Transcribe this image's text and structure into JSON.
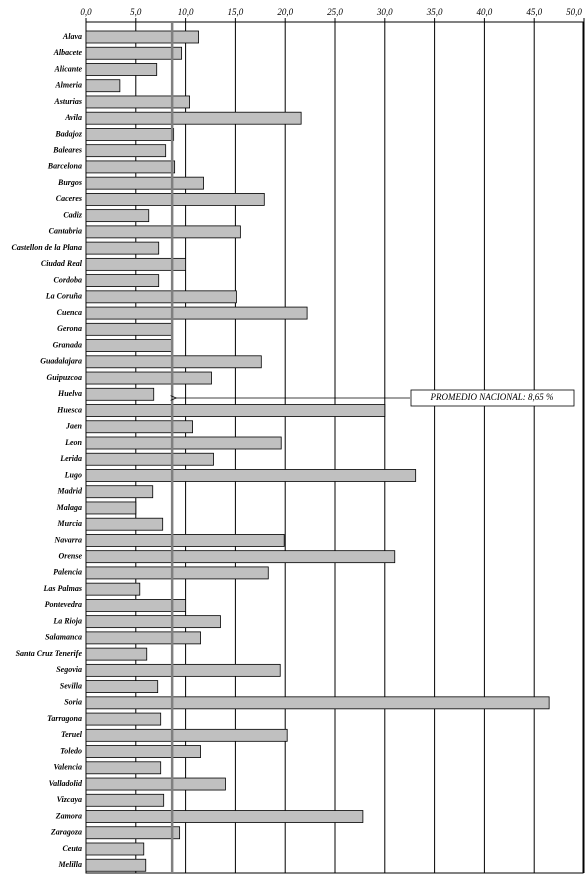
{
  "chart_data": {
    "type": "hbar",
    "categories": [
      "Alava",
      "Albacete",
      "Alicante",
      "Almeria",
      "Asturias",
      "Avila",
      "Badajoz",
      "Baleares",
      "Barcelona",
      "Burgos",
      "Caceres",
      "Cadiz",
      "Cantabria",
      "Castellon de la Plana",
      "Ciudad Real",
      "Cordoba",
      "La Coruña",
      "Cuenca",
      "Gerona",
      "Granada",
      "Guadalajara",
      "Guipuzcoa",
      "Huelva",
      "Huesca",
      "Jaen",
      "Leon",
      "Lerida",
      "Lugo",
      "Madrid",
      "Malaga",
      "Murcia",
      "Navarra",
      "Orense",
      "Palencia",
      "Las Palmas",
      "Pontevedra",
      "La Rioja",
      "Salamanca",
      "Santa Cruz Tenerife",
      "Segovia",
      "Sevilla",
      "Soria",
      "Tarragona",
      "Teruel",
      "Toledo",
      "Valencia",
      "Valladolid",
      "Vizcaya",
      "Zamora",
      "Zaragoza",
      "Ceuta",
      "Melilla"
    ],
    "values": [
      11.3,
      9.6,
      7.1,
      3.4,
      10.4,
      21.6,
      8.8,
      8.0,
      8.9,
      11.8,
      17.9,
      6.3,
      15.5,
      7.3,
      10.0,
      7.3,
      15.1,
      22.2,
      8.6,
      8.7,
      17.6,
      12.6,
      6.8,
      30.0,
      10.7,
      19.6,
      12.8,
      33.1,
      6.7,
      5.0,
      7.7,
      19.9,
      31.0,
      18.3,
      5.4,
      10.0,
      13.5,
      11.5,
      6.1,
      19.5,
      7.2,
      46.5,
      7.5,
      20.2,
      11.5,
      7.5,
      14.0,
      7.8,
      27.8,
      9.4,
      5.8,
      6.0
    ],
    "color": "#c0c0c0",
    "xlim": [
      0,
      50
    ],
    "xticks": [
      {
        "value": 0,
        "label": "0,0"
      },
      {
        "value": 5,
        "label": "5,0"
      },
      {
        "value": 10,
        "label": "10,0"
      },
      {
        "value": 15,
        "label": "15,0"
      },
      {
        "value": 20,
        "label": "20,0"
      },
      {
        "value": 25,
        "label": "25,0"
      },
      {
        "value": 30,
        "label": "30,0"
      },
      {
        "value": 35,
        "label": "35,0"
      },
      {
        "value": 40,
        "label": "40,0"
      },
      {
        "value": 45,
        "label": "45,0"
      },
      {
        "value": 50,
        "label": "50,0"
      }
    ],
    "grid": true,
    "average": {
      "value": 8.65,
      "label": "PROMEDIO NACIONAL: 8,65 %",
      "color": "#808080"
    }
  }
}
